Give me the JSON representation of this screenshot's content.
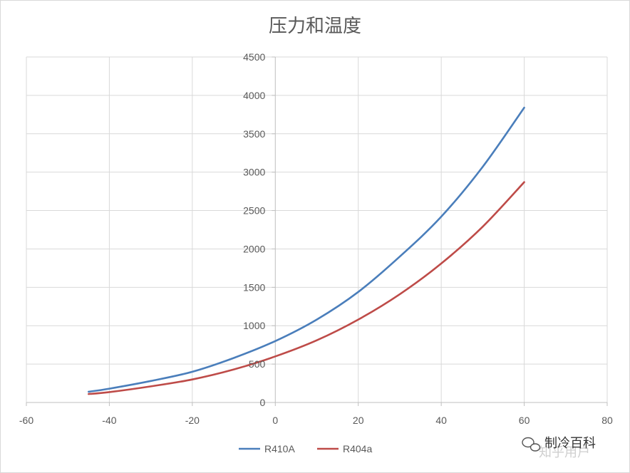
{
  "chart_data": {
    "type": "line",
    "title": "压力和温度",
    "xlabel": "",
    "ylabel": "",
    "xlim": [
      -60,
      80
    ],
    "ylim": [
      0,
      4500
    ],
    "xticks": [
      -60,
      -40,
      -20,
      0,
      20,
      40,
      60,
      80
    ],
    "yticks": [
      0,
      500,
      1000,
      1500,
      2000,
      2500,
      3000,
      3500,
      4000,
      4500
    ],
    "grid": true,
    "legend_position": "bottom",
    "series": [
      {
        "name": "R410A",
        "color": "#4a7ebb",
        "x": [
          -45,
          -40,
          -30,
          -20,
          -10,
          0,
          10,
          20,
          30,
          40,
          50,
          60
        ],
        "y": [
          140,
          180,
          280,
          400,
          580,
          800,
          1080,
          1440,
          1900,
          2420,
          3070,
          3840
        ]
      },
      {
        "name": "R404a",
        "color": "#be4b48",
        "x": [
          -45,
          -40,
          -30,
          -20,
          -10,
          0,
          10,
          20,
          30,
          40,
          50,
          60
        ],
        "y": [
          110,
          135,
          210,
          300,
          430,
          600,
          810,
          1080,
          1410,
          1810,
          2290,
          2870
        ]
      }
    ]
  },
  "watermark": {
    "account": "制冷百科",
    "faint": "知乎用户"
  }
}
